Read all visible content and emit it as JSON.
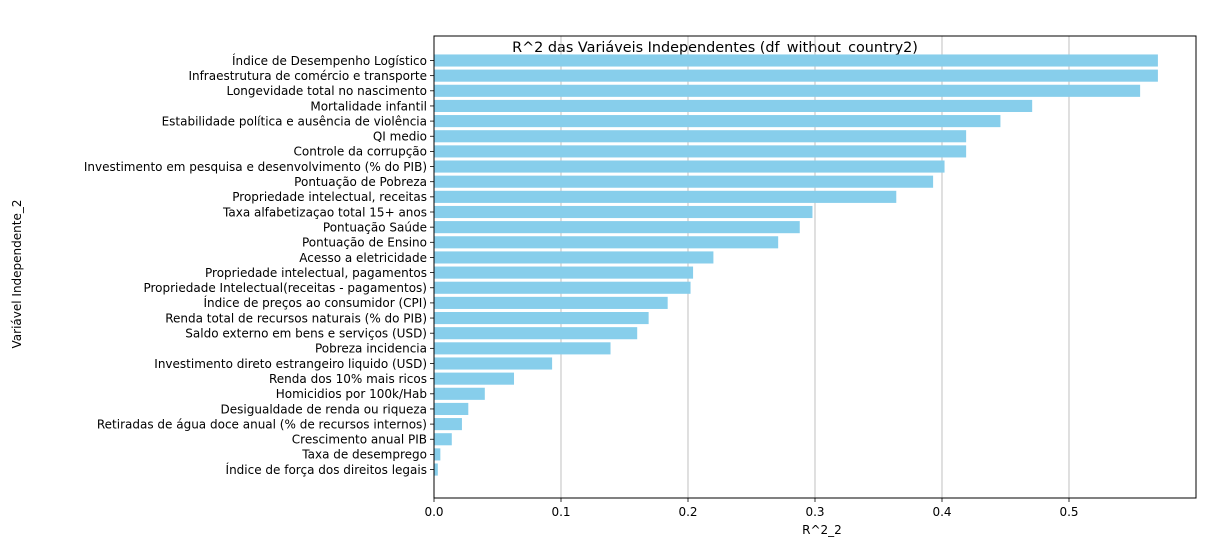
{
  "chart_data": {
    "type": "bar",
    "orientation": "horizontal",
    "title": "R^2 das Variáveis Independentes (df_without_country2)",
    "xlabel": "R^2_2",
    "ylabel": "Variável Independente_2",
    "xlim": [
      0,
      0.6
    ],
    "xticks": [
      0.0,
      0.1,
      0.2,
      0.3,
      0.4,
      0.5
    ],
    "xtick_labels": [
      "0.0",
      "0.1",
      "0.2",
      "0.3",
      "0.4",
      "0.5"
    ],
    "grid": "vertical (x-axis) on",
    "legend": "none",
    "bar_color": "#87CEEB",
    "grid_color": "#b0b0b0",
    "categories": [
      "Índice de Desempenho Logístico",
      "Infraestrutura de comércio e transporte",
      "Longevidade total no nascimento",
      "Mortalidade infantil",
      "Estabilidade política e ausência de violência",
      "QI medio",
      "Controle da corrupção",
      "Investimento em pesquisa e desenvolvimento (% do PIB)",
      "Pontuação de Pobreza",
      "Propriedade intelectual, receitas",
      "Taxa alfabetizaçao total 15+ anos",
      "Pontuação Saúde",
      "Pontuação de Ensino",
      "Acesso a eletricidade",
      "Propriedade intelectual, pagamentos",
      "Propriedade Intelectual(receitas - pagamentos)",
      "Índice de preços ao consumidor (CPI)",
      "Renda total de recursos naturais (% do PIB)",
      "Saldo externo em bens e serviços (USD)",
      "Pobreza incidencia",
      "Investimento direto estrangeiro liquido (USD)",
      "Renda dos 10% mais ricos",
      "Homicidios por 100k/Hab",
      "Desigualdade de renda ou riqueza",
      "Retiradas de água doce anual (% de recursos internos)",
      "Crescimento anual PIB",
      "Taxa de desemprego",
      "Índice de força dos direitos legais"
    ],
    "values": [
      0.57,
      0.57,
      0.556,
      0.471,
      0.446,
      0.419,
      0.419,
      0.402,
      0.393,
      0.364,
      0.298,
      0.288,
      0.271,
      0.22,
      0.204,
      0.202,
      0.184,
      0.169,
      0.16,
      0.139,
      0.093,
      0.063,
      0.04,
      0.027,
      0.022,
      0.014,
      0.005,
      0.003
    ]
  }
}
